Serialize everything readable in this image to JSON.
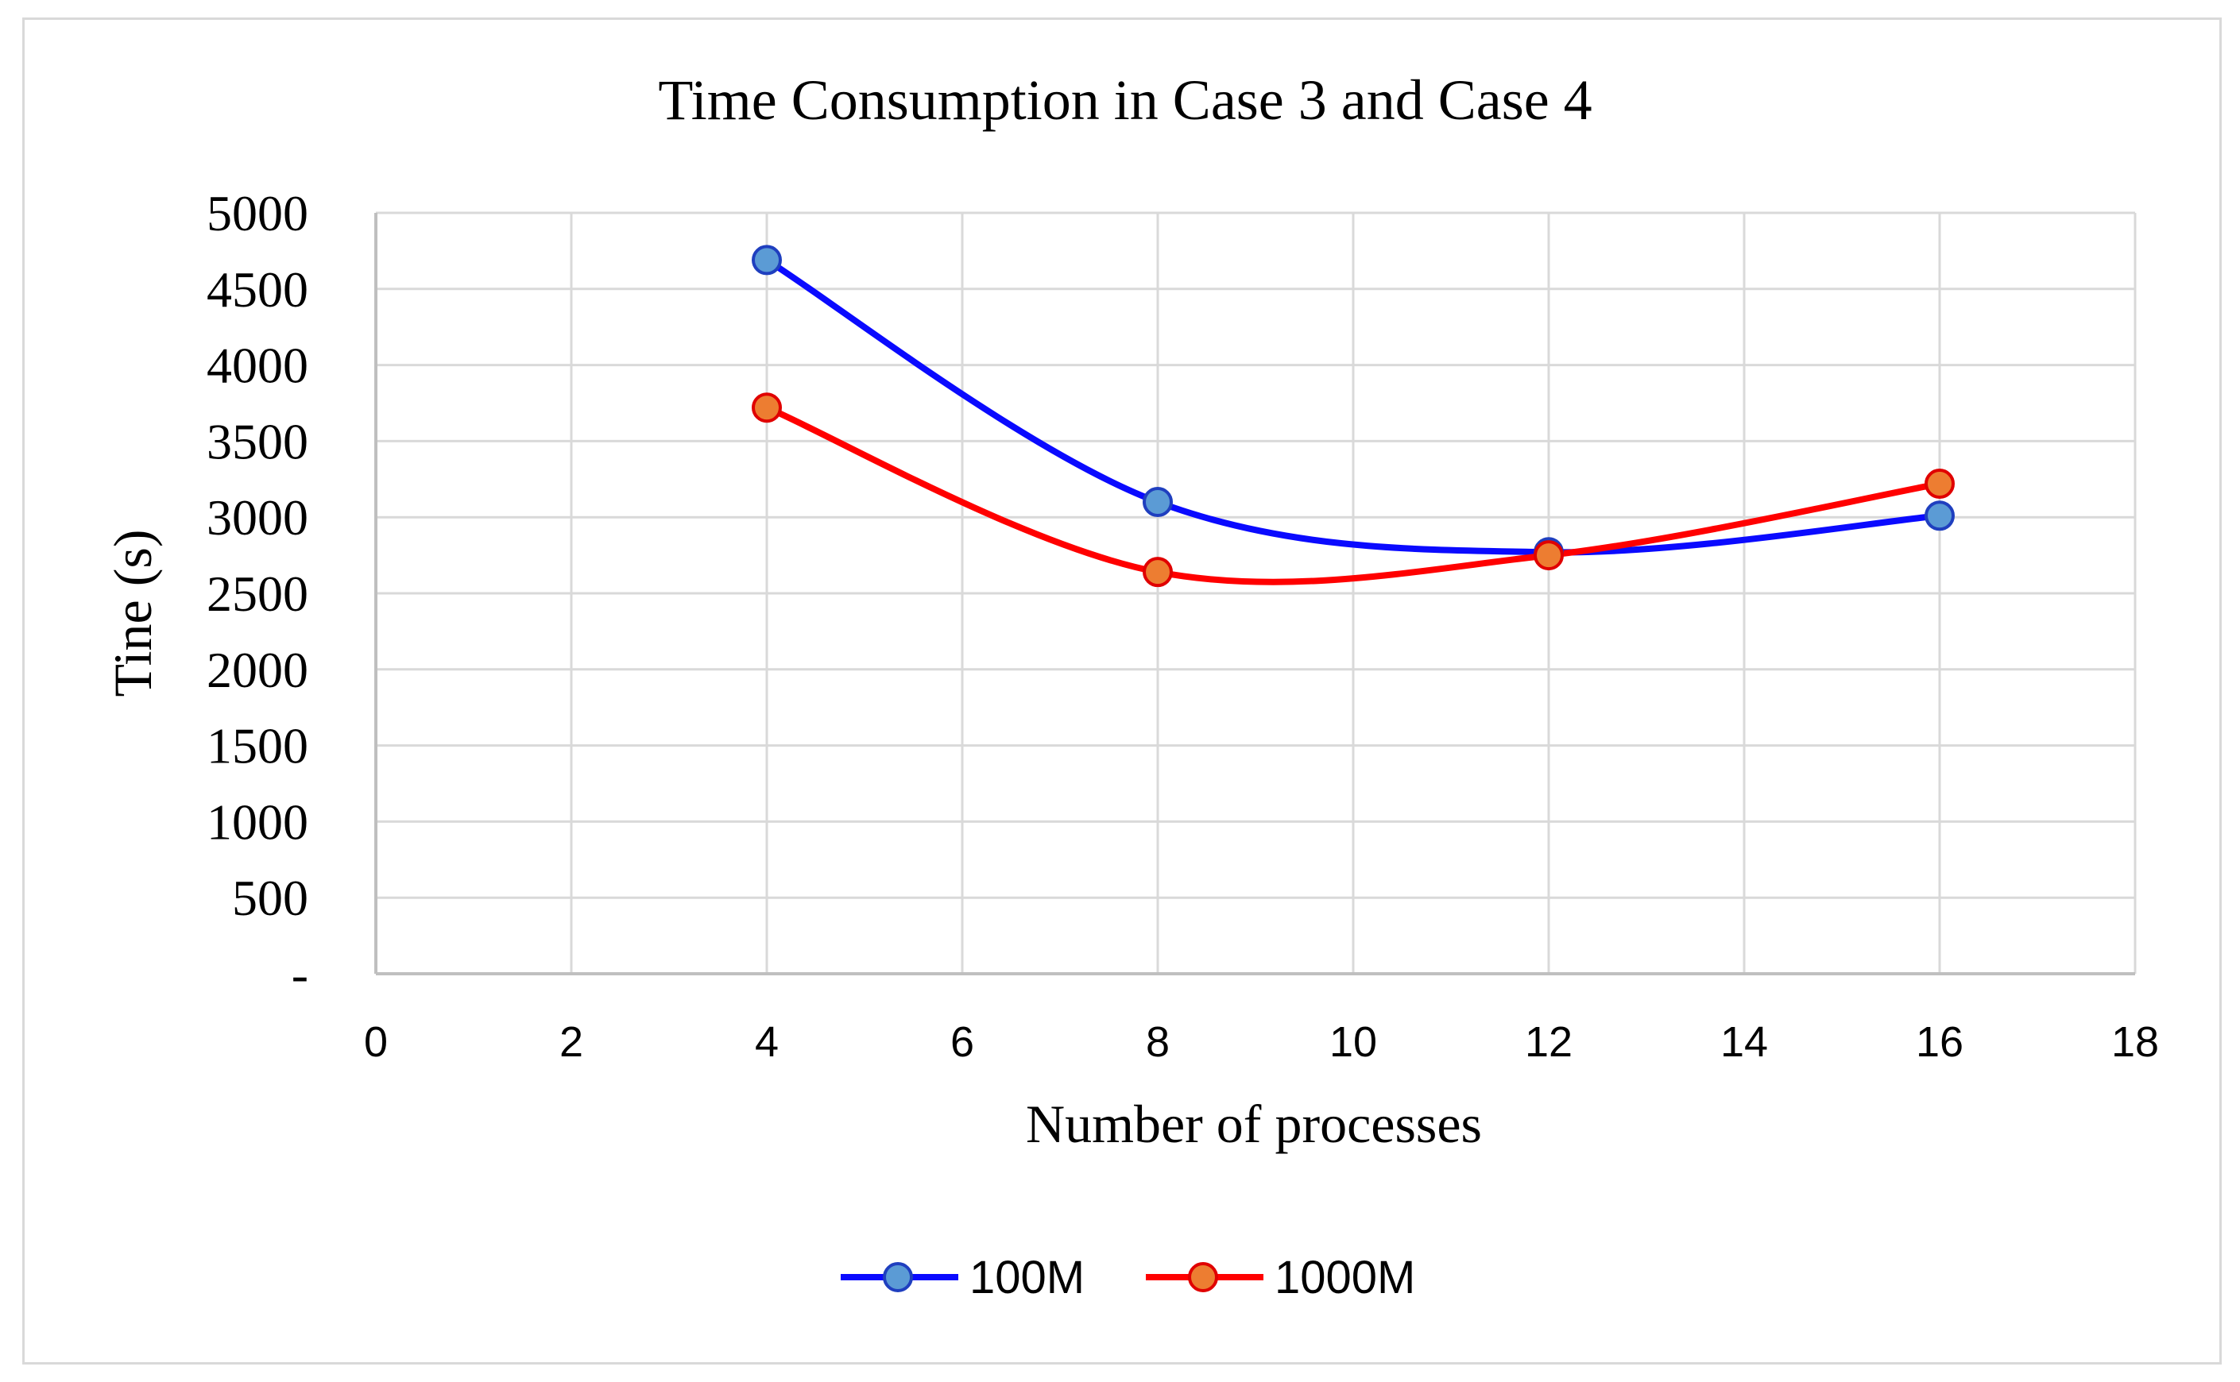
{
  "chart_data": {
    "type": "line",
    "title": "Time Consumption in Case 3 and Case 4",
    "xlabel": "Number of processes",
    "ylabel": "Tine (s)",
    "xlim": [
      0,
      18
    ],
    "ylim": [
      0,
      5000
    ],
    "x_ticks": [
      0,
      2,
      4,
      6,
      8,
      10,
      12,
      14,
      16,
      18
    ],
    "x_tick_labels": [
      "0",
      "2",
      "4",
      "6",
      "8",
      "10",
      "12",
      "14",
      "16",
      "18"
    ],
    "y_ticks": [
      0,
      500,
      1000,
      1500,
      2000,
      2500,
      3000,
      3500,
      4000,
      4500,
      5000
    ],
    "y_tick_labels": [
      "-",
      "500",
      "1000",
      "1500",
      "2000",
      "2500",
      "3000",
      "3500",
      "4000",
      "4500",
      "5000"
    ],
    "grid": true,
    "legend_position": "bottom",
    "series": [
      {
        "name": "100M",
        "x": [
          4,
          8,
          12,
          16
        ],
        "values": [
          4690,
          3100,
          2770,
          3010
        ],
        "line_color": "#0a0aff",
        "marker_fill": "#5b9bd5",
        "marker_edge": "#1f3fbf"
      },
      {
        "name": "1000M",
        "x": [
          4,
          8,
          12,
          16
        ],
        "values": [
          3720,
          2640,
          2750,
          3220
        ],
        "line_color": "#ff0000",
        "marker_fill": "#ed7d31",
        "marker_edge": "#e00000"
      }
    ]
  }
}
